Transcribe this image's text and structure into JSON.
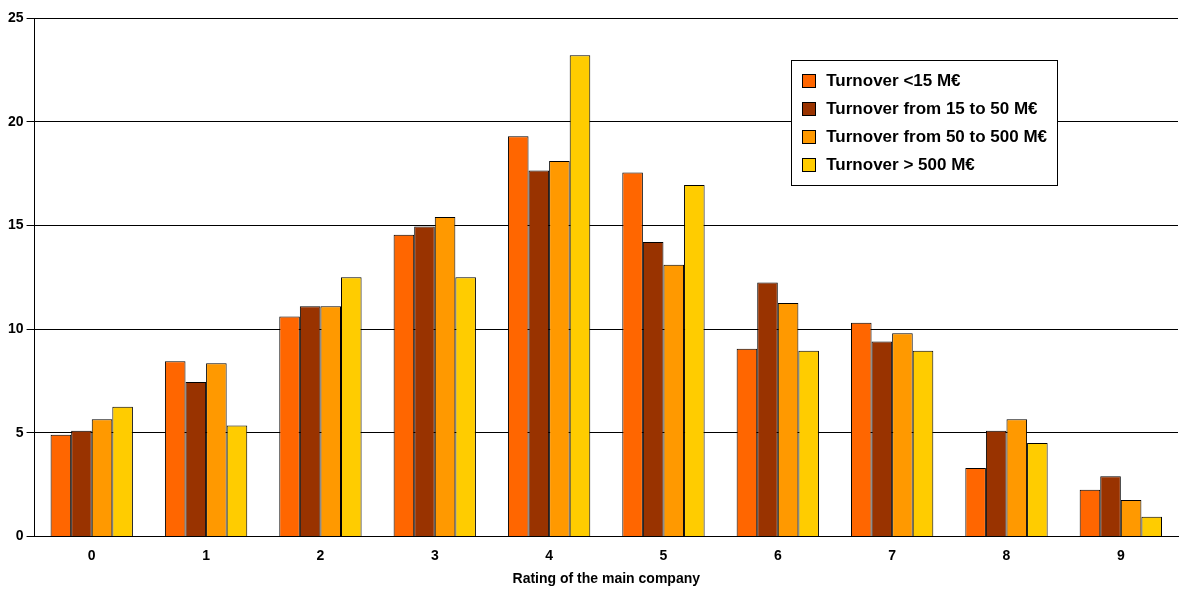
{
  "chart_data": {
    "type": "bar",
    "xlabel": "Rating of the main company",
    "categories": [
      "0",
      "1",
      "2",
      "3",
      "4",
      "5",
      "6",
      "7",
      "8",
      "9"
    ],
    "series": [
      {
        "name": "Turnover <15 M€",
        "color": "#ff6600",
        "values": [
          4.9,
          8.45,
          10.6,
          14.55,
          19.3,
          17.55,
          9.05,
          10.3,
          3.3,
          2.25
        ]
      },
      {
        "name": "Turnover from 15 to 50 M€",
        "color": "#993300",
        "values": [
          5.1,
          7.45,
          11.1,
          14.95,
          17.65,
          14.2,
          12.25,
          9.4,
          5.1,
          2.9
        ]
      },
      {
        "name": "Turnover from 50 to 500 M€",
        "color": "#ff9900",
        "values": [
          5.65,
          8.35,
          11.1,
          15.4,
          18.1,
          13.1,
          11.25,
          9.8,
          5.65,
          1.75
        ]
      },
      {
        "name": "Turnover > 500 M€",
        "color": "#ffcc00",
        "values": [
          6.25,
          5.35,
          12.5,
          12.5,
          23.2,
          16.95,
          8.95,
          8.95,
          4.5,
          0.95
        ]
      }
    ],
    "ylim": [
      0,
      25
    ],
    "yticks": [
      0,
      5,
      10,
      15,
      20,
      25
    ],
    "grid": "y",
    "legend": "top right"
  }
}
